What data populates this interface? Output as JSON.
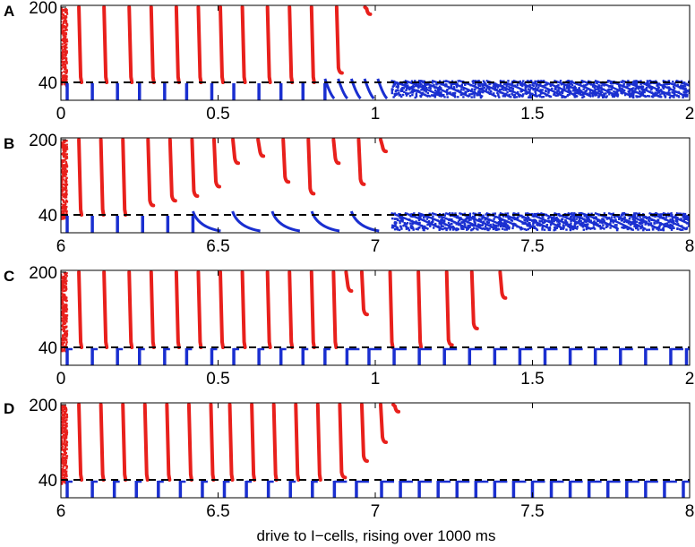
{
  "xlabel": "drive to I−cells, rising over 1000 ms",
  "colors": {
    "e_cells": "#e8201c",
    "i_cells": "#1a2fd0",
    "threshold": "#000000",
    "axes": "#000000"
  },
  "chart_data": [
    {
      "type": "scatter",
      "panel": "A",
      "xlim": [
        0,
        2
      ],
      "y_ticks": [
        40,
        200
      ],
      "threshold_y": 40,
      "x_ticks": [
        {
          "value": 0,
          "label": "0"
        },
        {
          "value": 0.5,
          "label": "0.5"
        },
        {
          "value": 1,
          "label": "1"
        },
        {
          "value": 1.5,
          "label": "1.5"
        },
        {
          "value": 2,
          "label": "2"
        }
      ],
      "e_bursts": [
        0.06,
        0.14,
        0.22,
        0.29,
        0.37,
        0.44,
        0.51,
        0.58,
        0.66,
        0.73,
        0.8,
        0.88,
        0.97
      ],
      "e_burst_bottoms": [
        40,
        40,
        40,
        40,
        40,
        40,
        40,
        40,
        40,
        40,
        40,
        60,
        185
      ],
      "i_stripes": [
        0.02,
        0.1,
        0.18,
        0.25,
        0.33,
        0.4,
        0.48,
        0.55,
        0.63,
        0.7,
        0.77,
        0.84
      ],
      "i_transition": 0.84,
      "i_dense_start": 1.05
    },
    {
      "type": "scatter",
      "panel": "B",
      "xlim": [
        6,
        8
      ],
      "y_ticks": [
        40,
        200
      ],
      "threshold_y": 40,
      "x_ticks": [
        {
          "value": 6,
          "label": "6"
        },
        {
          "value": 6.5,
          "label": "6.5"
        },
        {
          "value": 7,
          "label": "7"
        },
        {
          "value": 7.5,
          "label": "7.5"
        },
        {
          "value": 8,
          "label": "8"
        }
      ],
      "e_bursts": [
        6.06,
        6.13,
        6.2,
        6.28,
        6.35,
        6.42,
        6.49,
        6.55,
        6.63,
        6.71,
        6.79,
        6.87,
        6.95,
        7.02
      ],
      "e_burst_bottoms": [
        40,
        40,
        40,
        60,
        70,
        80,
        100,
        150,
        165,
        110,
        85,
        150,
        105,
        175
      ],
      "i_stripes": [
        6.02,
        6.1,
        6.18,
        6.26,
        6.34,
        6.42
      ],
      "i_transition": 6.42,
      "i_dense_start": 7.05
    },
    {
      "type": "scatter",
      "panel": "C",
      "xlim": [
        0,
        2
      ],
      "y_ticks": [
        40,
        200
      ],
      "threshold_y": 40,
      "x_ticks": [
        {
          "value": 0,
          "label": "0"
        },
        {
          "value": 0.5,
          "label": "0.5"
        },
        {
          "value": 1,
          "label": "1"
        },
        {
          "value": 1.5,
          "label": "1.5"
        },
        {
          "value": 2,
          "label": "2"
        }
      ],
      "e_bursts": [
        0.06,
        0.14,
        0.22,
        0.29,
        0.37,
        0.44,
        0.51,
        0.58,
        0.66,
        0.73,
        0.8,
        0.87,
        0.91,
        0.96,
        1.05,
        1.14,
        1.23,
        1.31,
        1.4
      ],
      "e_burst_bottoms": [
        40,
        40,
        40,
        40,
        40,
        40,
        40,
        40,
        40,
        40,
        40,
        40,
        160,
        110,
        40,
        40,
        45,
        80,
        145
      ],
      "i_stripes": [
        0.02,
        0.1,
        0.18,
        0.25,
        0.33,
        0.4,
        0.48,
        0.55,
        0.63,
        0.7,
        0.77,
        0.84,
        0.91,
        0.98,
        1.06,
        1.14,
        1.22,
        1.3,
        1.38,
        1.46,
        1.54,
        1.62,
        1.7,
        1.78,
        1.86,
        1.94,
        1.99
      ],
      "i_transition": null,
      "i_dense_start": null
    },
    {
      "type": "scatter",
      "panel": "D",
      "xlim": [
        6,
        8
      ],
      "y_ticks": [
        40,
        200
      ],
      "threshold_y": 40,
      "x_ticks": [
        {
          "value": 6,
          "label": "6"
        },
        {
          "value": 6.5,
          "label": "6.5"
        },
        {
          "value": 7,
          "label": "7"
        },
        {
          "value": 7.5,
          "label": "7.5"
        },
        {
          "value": 8,
          "label": "8"
        }
      ],
      "e_bursts": [
        6.06,
        6.13,
        6.2,
        6.27,
        6.34,
        6.41,
        6.48,
        6.54,
        6.61,
        6.68,
        6.75,
        6.82,
        6.89,
        6.96,
        7.02,
        7.06
      ],
      "e_burst_bottoms": [
        40,
        40,
        40,
        40,
        40,
        40,
        40,
        40,
        40,
        40,
        40,
        40,
        45,
        80,
        120,
        185
      ],
      "i_stripes": [
        6.02,
        6.1,
        6.17,
        6.24,
        6.31,
        6.38,
        6.45,
        6.52,
        6.59,
        6.66,
        6.73,
        6.8,
        6.87,
        6.94,
        7.02,
        7.08,
        7.14,
        7.2,
        7.26,
        7.32,
        7.38,
        7.44,
        7.5,
        7.56,
        7.62,
        7.68,
        7.74,
        7.8,
        7.86,
        7.92,
        7.98
      ],
      "i_transition": null,
      "i_dense_start": null
    }
  ]
}
